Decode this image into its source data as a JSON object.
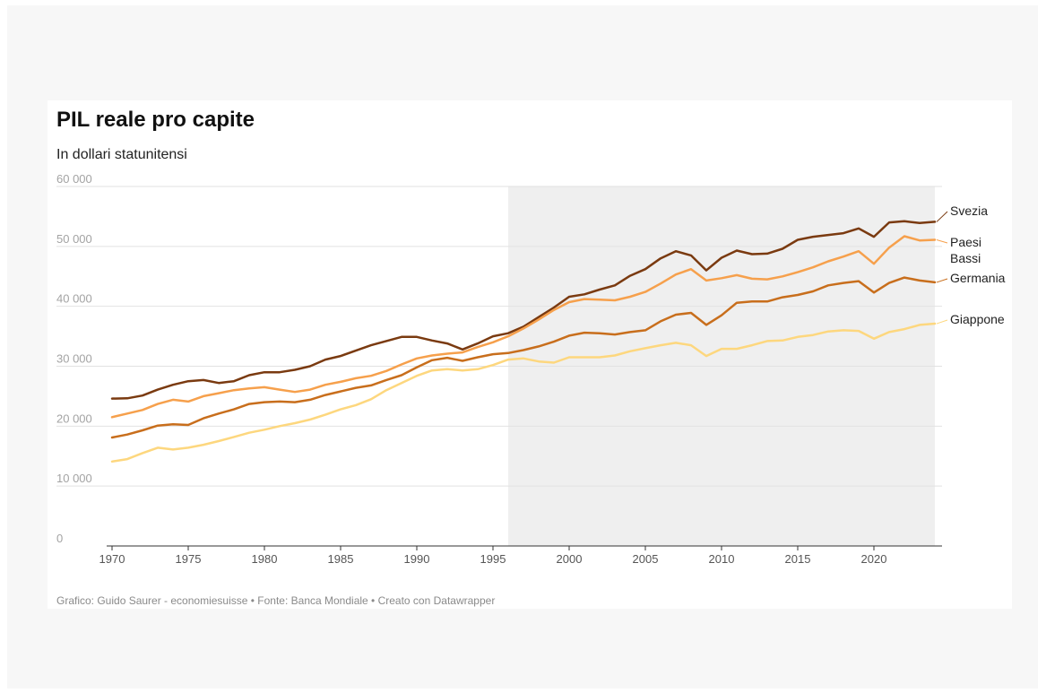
{
  "chart_data": {
    "type": "line",
    "title": "PIL reale pro capite",
    "subtitle": "In dollari statunitensi",
    "source": "Grafico: Guido Saurer - economiesuisse • Fonte: Banca Mondiale • Creato con Datawrapper",
    "ylim": [
      0,
      60000
    ],
    "xlim": [
      1970,
      2024
    ],
    "y_ticks": [
      0,
      10000,
      20000,
      30000,
      40000,
      50000,
      60000
    ],
    "y_tick_labels": [
      "0",
      "10 000",
      "20 000",
      "30 000",
      "40 000",
      "50 000",
      "60 000"
    ],
    "x_ticks": [
      1970,
      1975,
      1980,
      1985,
      1990,
      1995,
      2000,
      2005,
      2010,
      2015,
      2020
    ],
    "x_tick_labels": [
      "1970",
      "1975",
      "1980",
      "1985",
      "1990",
      "1995",
      "2000",
      "2005",
      "2010",
      "2015",
      "2020"
    ],
    "highlight_range": [
      1996,
      2024
    ],
    "grid": true,
    "x": [
      1970,
      1971,
      1972,
      1973,
      1974,
      1975,
      1976,
      1977,
      1978,
      1979,
      1980,
      1981,
      1982,
      1983,
      1984,
      1985,
      1986,
      1987,
      1988,
      1989,
      1990,
      1991,
      1992,
      1993,
      1994,
      1995,
      1996,
      1997,
      1998,
      1999,
      2000,
      2001,
      2002,
      2003,
      2004,
      2005,
      2006,
      2007,
      2008,
      2009,
      2010,
      2011,
      2012,
      2013,
      2014,
      2015,
      2016,
      2017,
      2018,
      2019,
      2020,
      2021,
      2022,
      2023,
      2024
    ],
    "series": [
      {
        "name": "Svezia",
        "color": "#7a3a10",
        "values": [
          24600,
          24650,
          25100,
          26100,
          26900,
          27500,
          27700,
          27200,
          27500,
          28500,
          29000,
          29000,
          29400,
          30000,
          31100,
          31700,
          32600,
          33500,
          34200,
          34900,
          34900,
          34300,
          33800,
          32800,
          33800,
          35000,
          35500,
          36600,
          38200,
          39800,
          41600,
          42000,
          42800,
          43500,
          45100,
          46200,
          48000,
          49200,
          48500,
          46000,
          48100,
          49300,
          48700,
          48800,
          49600,
          51100,
          51600,
          51900,
          52200,
          53000,
          51600,
          54000,
          54200,
          53900,
          54100
        ]
      },
      {
        "name": "Paesi Bassi",
        "color": "#f6a04c",
        "values": [
          21500,
          22100,
          22700,
          23700,
          24400,
          24100,
          25000,
          25500,
          26000,
          26300,
          26500,
          26100,
          25700,
          26100,
          26900,
          27400,
          28000,
          28400,
          29200,
          30300,
          31300,
          31800,
          32100,
          32300,
          33200,
          34000,
          35000,
          36300,
          37800,
          39400,
          40700,
          41200,
          41100,
          41000,
          41600,
          42400,
          43800,
          45300,
          46200,
          44300,
          44700,
          45200,
          44600,
          44500,
          45000,
          45700,
          46500,
          47500,
          48300,
          49200,
          47100,
          49800,
          51700,
          51000,
          51100
        ]
      },
      {
        "name": "Germania",
        "color": "#c86e1c",
        "values": [
          18100,
          18600,
          19300,
          20100,
          20300,
          20200,
          21300,
          22100,
          22800,
          23700,
          24000,
          24100,
          24000,
          24400,
          25200,
          25800,
          26400,
          26800,
          27700,
          28500,
          29800,
          31000,
          31400,
          30900,
          31500,
          32000,
          32200,
          32700,
          33300,
          34100,
          35100,
          35600,
          35500,
          35300,
          35700,
          36000,
          37500,
          38600,
          38900,
          36900,
          38500,
          40600,
          40800,
          40800,
          41500,
          41900,
          42500,
          43500,
          43900,
          44200,
          42300,
          43900,
          44800,
          44300,
          44000
        ]
      },
      {
        "name": "Giappone",
        "color": "#fdd77e",
        "values": [
          14100,
          14500,
          15500,
          16400,
          16100,
          16400,
          16900,
          17500,
          18200,
          18900,
          19400,
          20000,
          20500,
          21100,
          21900,
          22800,
          23500,
          24500,
          26000,
          27200,
          28400,
          29300,
          29500,
          29300,
          29500,
          30200,
          31100,
          31300,
          30800,
          30600,
          31500,
          31500,
          31500,
          31800,
          32500,
          33000,
          33500,
          33900,
          33500,
          31700,
          32900,
          32900,
          33500,
          34200,
          34300,
          34900,
          35200,
          35800,
          36000,
          35900,
          34600,
          35700,
          36200,
          36900,
          37100
        ]
      }
    ]
  }
}
